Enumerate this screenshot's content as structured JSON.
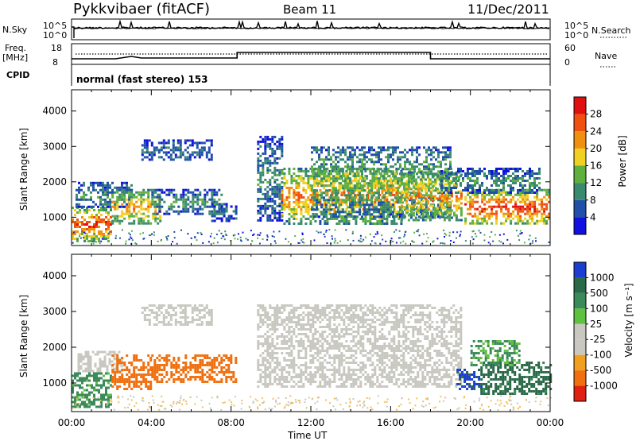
{
  "header": {
    "station": "Pykkvibaer (fitACF)",
    "beam": "Beam 11",
    "date": "11/Dec/2011"
  },
  "strip_labels": {
    "nsky": "N.Sky",
    "nsky_tick_top": "10^5",
    "nsky_tick_bottom": "10^0",
    "nsearch": "N.Search",
    "nsearch_tick_top": "10^5",
    "nsearch_tick_bottom": "10^0",
    "freq_line1": "Freq.",
    "freq_line2": "[MHz]",
    "freq_tick_top": "18",
    "freq_tick_bottom": "8",
    "nave": "Nave",
    "nave_tick_top": "60",
    "nave_tick_bottom": "0",
    "cpid": "CPID",
    "mode": "normal (fast stereo) 153"
  },
  "colors": {
    "power_scale": [
      "#1010e0",
      "#2050a8",
      "#3a8a70",
      "#60b040",
      "#f0d020",
      "#f09010",
      "#f05010",
      "#e01010"
    ],
    "velocity_scale": [
      "#1a3fd0",
      "#2a6a48",
      "#3a8a5a",
      "#60c040",
      "#c8c8c0",
      "#c8c8c0",
      "#f0a020",
      "#f07010",
      "#e02010"
    ],
    "gray_scatter": "#c4c4bc"
  },
  "chart_data": [
    {
      "type": "heatmap",
      "name": "Power",
      "ylabel": "Slant Range [km]",
      "yticks": [
        "1000",
        "2000",
        "3000",
        "4000"
      ],
      "ylim": [
        200,
        4600
      ],
      "xlim": [
        "00:00",
        "24:00"
      ],
      "colorbar_label": "Power [dB]",
      "colorbar_ticks": [
        "4",
        "8",
        "12",
        "16",
        "20",
        "24",
        "28"
      ],
      "colorbar_range": [
        0,
        30
      ],
      "regions": [
        {
          "t0": 0.0,
          "t1": 2.0,
          "r0": 350,
          "r1": 1300,
          "power": 26
        },
        {
          "t0": 0.2,
          "t1": 3.0,
          "r0": 1300,
          "r1": 2000,
          "power": 10
        },
        {
          "t0": 2.0,
          "t1": 4.5,
          "r0": 800,
          "r1": 1800,
          "power": 20
        },
        {
          "t0": 3.5,
          "t1": 7.0,
          "r0": 2600,
          "r1": 3200,
          "power": 7
        },
        {
          "t0": 4.0,
          "t1": 7.5,
          "r0": 1100,
          "r1": 1800,
          "power": 10
        },
        {
          "t0": 7.0,
          "t1": 8.3,
          "r0": 900,
          "r1": 1400,
          "power": 8
        },
        {
          "t0": 9.3,
          "t1": 10.5,
          "r0": 900,
          "r1": 3300,
          "power": 9
        },
        {
          "t0": 10.5,
          "t1": 16.5,
          "r0": 850,
          "r1": 2400,
          "power": 22
        },
        {
          "t0": 12.0,
          "t1": 19.0,
          "r0": 1000,
          "r1": 3000,
          "power": 14
        },
        {
          "t0": 16.5,
          "t1": 19.5,
          "r0": 900,
          "r1": 2300,
          "power": 21
        },
        {
          "t0": 19.7,
          "t1": 24.0,
          "r0": 800,
          "r1": 1800,
          "power": 26
        },
        {
          "t0": 18.5,
          "t1": 23.5,
          "r0": 1700,
          "r1": 2400,
          "power": 10
        }
      ]
    },
    {
      "type": "heatmap",
      "name": "Velocity",
      "ylabel": "Slant Range [km]",
      "xlabel": "Time UT",
      "yticks": [
        "1000",
        "2000",
        "3000",
        "4000"
      ],
      "ylim": [
        200,
        4600
      ],
      "xlim": [
        "00:00",
        "24:00"
      ],
      "xticks": [
        "00:00",
        "04:00",
        "08:00",
        "12:00",
        "16:00",
        "20:00",
        "00:00"
      ],
      "colorbar_label": "Velocity [m s⁻¹]",
      "colorbar_ticks": [
        "1000",
        "500",
        "100",
        "25",
        "-25",
        "-100",
        "-500",
        "-1000"
      ],
      "regions": [
        {
          "t0": 0.0,
          "t1": 2.0,
          "r0": 350,
          "r1": 1300,
          "velocity": 150
        },
        {
          "t0": 0.3,
          "t1": 2.5,
          "r0": 1300,
          "r1": 1900,
          "velocity": 0
        },
        {
          "t0": 2.0,
          "t1": 4.0,
          "r0": 800,
          "r1": 1800,
          "velocity": -250
        },
        {
          "t0": 3.5,
          "t1": 7.0,
          "r0": 2600,
          "r1": 3200,
          "velocity": 0
        },
        {
          "t0": 4.0,
          "t1": 8.2,
          "r0": 1000,
          "r1": 1800,
          "velocity": -300
        },
        {
          "t0": 9.3,
          "t1": 19.5,
          "r0": 900,
          "r1": 3200,
          "velocity": 0
        },
        {
          "t0": 19.3,
          "t1": 20.5,
          "r0": 800,
          "r1": 1400,
          "velocity": 700
        },
        {
          "t0": 20.5,
          "t1": 24.0,
          "r0": 700,
          "r1": 1600,
          "velocity": 400
        },
        {
          "t0": 20.0,
          "t1": 22.5,
          "r0": 1500,
          "r1": 2200,
          "velocity": 120
        }
      ]
    }
  ]
}
